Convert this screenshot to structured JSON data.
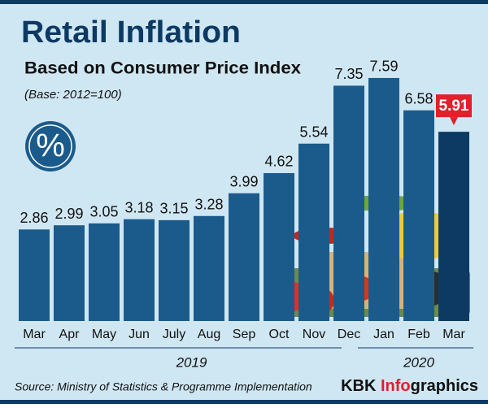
{
  "chart_data": {
    "type": "bar",
    "title": "Retail Inflation",
    "subtitle": "Based on Consumer Price Index",
    "note": "(Base: 2012=100)",
    "categories": [
      "Mar",
      "Apr",
      "May",
      "Jun",
      "July",
      "Aug",
      "Sep",
      "Oct",
      "Nov",
      "Dec",
      "Jan",
      "Feb",
      "Mar"
    ],
    "years": [
      "2019",
      "2019",
      "2019",
      "2019",
      "2019",
      "2019",
      "2019",
      "2019",
      "2019",
      "2019",
      "2020",
      "2020",
      "2020"
    ],
    "values": [
      2.86,
      2.99,
      3.05,
      3.18,
      3.15,
      3.28,
      3.99,
      4.62,
      5.54,
      7.35,
      7.59,
      6.58,
      5.91
    ],
    "bar_colors": [
      "#1b5b8c",
      "#1b5b8c",
      "#1b5b8c",
      "#1b5b8c",
      "#1b5b8c",
      "#1b5b8c",
      "#1b5b8c",
      "#1b5b8c",
      "#1b5b8c",
      "#1b5b8c",
      "#1b5b8c",
      "#1b5b8c",
      "#0d3a63"
    ],
    "label_backgrounds": [
      null,
      null,
      null,
      null,
      null,
      null,
      null,
      null,
      null,
      null,
      null,
      null,
      "#e0202a"
    ],
    "source": "Source: Ministry of Statistics & Programme Implementation",
    "credit": [
      "KBK ",
      "Info",
      "graphics"
    ],
    "credit_colors": [
      "#111111",
      "#e0202a",
      "#111111"
    ]
  }
}
